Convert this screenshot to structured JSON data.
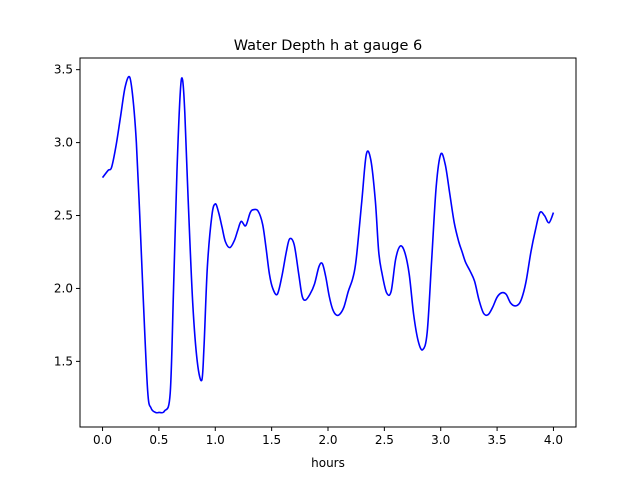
{
  "chart_data": {
    "type": "line",
    "title": "Water Depth h at gauge 6",
    "xlabel": "hours",
    "ylabel": "",
    "xlim": [
      -0.2,
      4.2
    ],
    "ylim": [
      1.05,
      3.58
    ],
    "xticks": [
      0.0,
      0.5,
      1.0,
      1.5,
      2.0,
      2.5,
      3.0,
      3.5,
      4.0
    ],
    "xtick_labels": [
      "0.0",
      "0.5",
      "1.0",
      "1.5",
      "2.0",
      "2.5",
      "3.0",
      "3.5",
      "4.0"
    ],
    "yticks": [
      1.5,
      2.0,
      2.5,
      3.0,
      3.5
    ],
    "ytick_labels": [
      "1.5",
      "2.0",
      "2.5",
      "3.0",
      "3.5"
    ],
    "grid": false,
    "series": [
      {
        "color": "#0000ff",
        "x": [
          0.0,
          0.05,
          0.08,
          0.12,
          0.16,
          0.2,
          0.24,
          0.27,
          0.3,
          0.33,
          0.36,
          0.4,
          0.43,
          0.47,
          0.5,
          0.55,
          0.6,
          0.63,
          0.66,
          0.69,
          0.71,
          0.73,
          0.76,
          0.8,
          0.84,
          0.88,
          0.9,
          0.93,
          0.97,
          1.0,
          1.03,
          1.06,
          1.09,
          1.13,
          1.17,
          1.2,
          1.23,
          1.27,
          1.31,
          1.34,
          1.38,
          1.42,
          1.45,
          1.48,
          1.51,
          1.55,
          1.59,
          1.63,
          1.66,
          1.7,
          1.74,
          1.77,
          1.8,
          1.84,
          1.88,
          1.92,
          1.95,
          1.98,
          2.01,
          2.04,
          2.07,
          2.1,
          2.14,
          2.18,
          2.22,
          2.25,
          2.3,
          2.34,
          2.38,
          2.42,
          2.45,
          2.48,
          2.52,
          2.56,
          2.6,
          2.64,
          2.68,
          2.72,
          2.76,
          2.8,
          2.84,
          2.88,
          2.92,
          2.96,
          3.0,
          3.04,
          3.08,
          3.12,
          3.16,
          3.19,
          3.22,
          3.26,
          3.3,
          3.34,
          3.38,
          3.42,
          3.46,
          3.5,
          3.54,
          3.58,
          3.62,
          3.66,
          3.7,
          3.73,
          3.76,
          3.8,
          3.84,
          3.88,
          3.92,
          3.96,
          4.0
        ],
        "y": [
          2.76,
          2.81,
          2.83,
          2.98,
          3.18,
          3.38,
          3.45,
          3.3,
          3.0,
          2.5,
          1.95,
          1.3,
          1.18,
          1.15,
          1.15,
          1.16,
          1.28,
          2.0,
          2.8,
          3.35,
          3.43,
          3.2,
          2.6,
          1.9,
          1.5,
          1.37,
          1.6,
          2.15,
          2.5,
          2.58,
          2.52,
          2.42,
          2.32,
          2.28,
          2.33,
          2.4,
          2.46,
          2.43,
          2.52,
          2.54,
          2.53,
          2.44,
          2.28,
          2.1,
          2.0,
          1.96,
          2.08,
          2.25,
          2.34,
          2.3,
          2.1,
          1.95,
          1.92,
          1.96,
          2.03,
          2.15,
          2.17,
          2.08,
          1.95,
          1.86,
          1.82,
          1.82,
          1.87,
          1.98,
          2.07,
          2.2,
          2.6,
          2.92,
          2.88,
          2.6,
          2.25,
          2.1,
          1.97,
          1.98,
          2.2,
          2.29,
          2.25,
          2.1,
          1.82,
          1.64,
          1.58,
          1.7,
          2.2,
          2.7,
          2.92,
          2.85,
          2.65,
          2.45,
          2.32,
          2.25,
          2.18,
          2.12,
          2.05,
          1.92,
          1.83,
          1.82,
          1.87,
          1.94,
          1.97,
          1.96,
          1.9,
          1.88,
          1.9,
          1.96,
          2.06,
          2.25,
          2.4,
          2.52,
          2.5,
          2.45,
          2.52
        ]
      }
    ]
  }
}
